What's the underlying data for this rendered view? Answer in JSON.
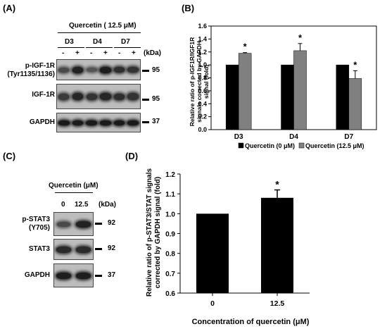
{
  "panelA": {
    "label": "(A)",
    "treatment": "Quercetin ( 12.5 μM)",
    "days": [
      "D3",
      "D4",
      "D7"
    ],
    "lane_signs": [
      "-",
      "+",
      "-",
      "+",
      "-",
      "+"
    ],
    "kda_header": "(kDa)",
    "rows": [
      {
        "name_line1": "p-IGF-1R",
        "name_line2": "(Tyr1135/1136)",
        "kda": "95"
      },
      {
        "name_line1": "IGF-1R",
        "name_line2": "",
        "kda": "95"
      },
      {
        "name_line1": "GAPDH",
        "name_line2": "",
        "kda": "37"
      }
    ]
  },
  "panelB": {
    "label": "(B)",
    "chart_data": {
      "type": "bar",
      "categories": [
        "D3",
        "D4",
        "D7"
      ],
      "series": [
        {
          "name": "Quercetin (0 μM)",
          "color": "#000000",
          "values": [
            1.0,
            1.0,
            1.0
          ],
          "errors": [
            0,
            0,
            0
          ],
          "significance": [
            "",
            "",
            ""
          ]
        },
        {
          "name": "Quercetin (12.5 μM)",
          "color": "#808080",
          "values": [
            1.18,
            1.22,
            0.79
          ],
          "errors": [
            0.01,
            0.11,
            0.12
          ],
          "significance": [
            "*",
            "*",
            "*"
          ]
        }
      ],
      "ylabel_lines": [
        "Relative ratio of p-IGF1R/IGF1R",
        "signals corrected by GAPDH",
        "signal (fold)"
      ],
      "ylim": [
        0,
        1.6
      ],
      "yticks": [
        "0.0",
        "0.2",
        "0.4",
        "0.6",
        "0.8",
        "1.0",
        "1.2",
        "1.4",
        "1.6"
      ],
      "legend_position": "bottom"
    }
  },
  "panelC": {
    "label": "(C)",
    "treatment": "Quercetin (μM)",
    "lanes": [
      "0",
      "12.5"
    ],
    "kda_header": "(kDa)",
    "rows": [
      {
        "name_line1": "p-STAT3",
        "name_line2": "(Y705)",
        "kda": "92"
      },
      {
        "name_line1": "STAT3",
        "name_line2": "",
        "kda": "92"
      },
      {
        "name_line1": "GAPDH",
        "name_line2": "",
        "kda": "37"
      }
    ]
  },
  "panelD": {
    "label": "(D)",
    "chart_data": {
      "type": "bar",
      "categories": [
        "0",
        "12.5"
      ],
      "values": [
        1.0,
        1.08
      ],
      "errors": [
        0,
        0.04
      ],
      "significance": [
        "",
        "*"
      ],
      "color": "#000000",
      "xlabel": "Concentration of quercetin (μM)",
      "ylabel_lines": [
        "Relative ratio of p-STAT3/STAT signals",
        "corrected by GAPDH signal (fold)"
      ],
      "ylim": [
        0.6,
        1.2
      ],
      "yticks": [
        "0.6",
        "0.7",
        "0.8",
        "0.9",
        "1.0",
        "1.1",
        "1.2"
      ]
    }
  }
}
